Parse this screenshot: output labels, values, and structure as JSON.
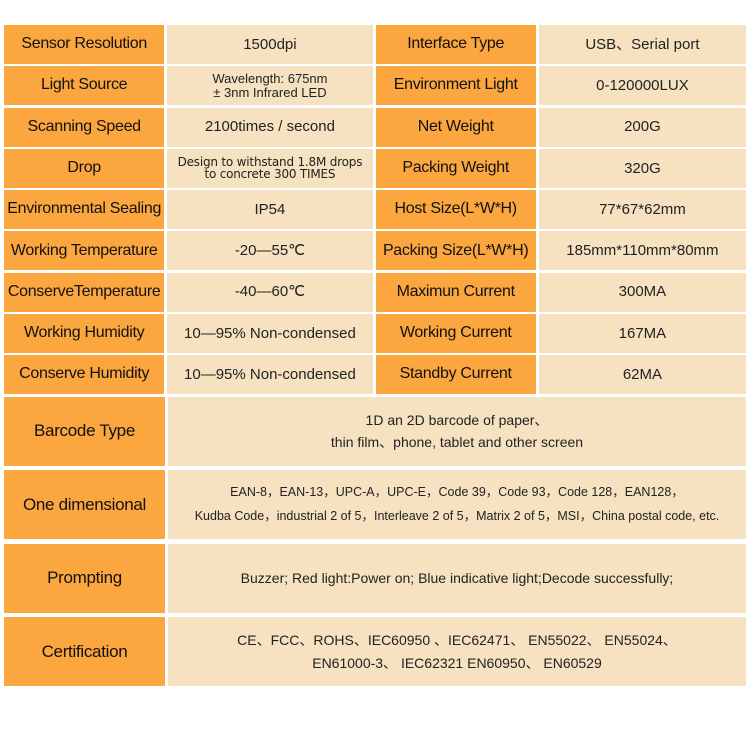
{
  "colors": {
    "key_bg": "#fba63f",
    "value_bg": "#f6e1c0"
  },
  "specs": [
    {
      "k1": "Sensor Resolution",
      "v1": "1500dpi",
      "k2": "Interface Type",
      "v2": "USB、Serial port"
    },
    {
      "k1": "Light Source",
      "v1": "Wavelength: 675nm\n± 3nm Infrared LED",
      "k2": "Environment Light",
      "v2": "0-120000LUX"
    },
    {
      "k1": "Scanning Speed",
      "v1": "2100times / second",
      "k2": "Net Weight",
      "v2": "200G"
    },
    {
      "k1": "Drop",
      "v1": "Design to withstand 1.8M drops\nto concrete 300 TIMES",
      "k2": "Packing Weight",
      "v2": "320G"
    },
    {
      "k1": "Environmental Sealing",
      "v1": "IP54",
      "k2": "Host Size(L*W*H)",
      "v2": "77*67*62mm"
    },
    {
      "k1": "Working Temperature",
      "v1": "-20—55℃",
      "k2": "Packing Size(L*W*H)",
      "v2": "185mm*110mm*80mm"
    },
    {
      "k1": "ConserveTemperature",
      "v1": "-40—60℃",
      "k2": "Maximun Current",
      "v2": "300MA"
    },
    {
      "k1": "Working Humidity",
      "v1": "10—95% Non-condensed",
      "k2": "Working Current",
      "v2": "167MA"
    },
    {
      "k1": "Conserve Humidity",
      "v1": "10—95% Non-condensed",
      "k2": "Standby Current",
      "v2": "62MA"
    }
  ],
  "wide": [
    {
      "k": "Barcode Type",
      "l1": "1D an 2D barcode of paper、",
      "l2": "thin film、phone, tablet and other screen"
    },
    {
      "k": "One dimensional",
      "l1": "EAN-8，EAN-13，UPC-A，UPC-E，Code 39，Code 93，Code 128，EAN128，",
      "l2": "Kudba Code，industrial 2 of 5，Interleave 2 of 5，Matrix 2 of 5，MSI，China postal code, etc."
    },
    {
      "k": "Prompting",
      "l1": "Buzzer;  Red light:Power on; Blue indicative light;Decode successfully;",
      "l2": ""
    },
    {
      "k": "Certification",
      "l1": "CE、FCC、ROHS、IEC60950 、IEC62471、 EN55022、 EN55024、",
      "l2": "EN61000-3、 IEC62321 EN60950、 EN60529"
    }
  ]
}
